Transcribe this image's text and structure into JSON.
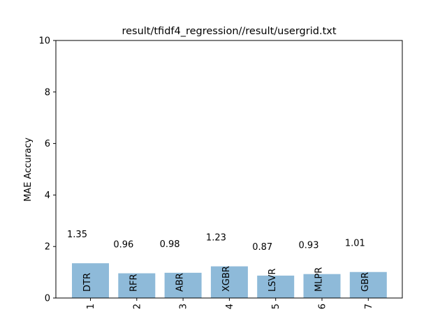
{
  "chart_data": {
    "type": "bar",
    "title": "result/tfidf4_regression//result/usergrid.txt",
    "ylabel": "MAE Accuracy",
    "xlabel": "",
    "ylim": [
      0,
      10
    ],
    "yticks": [
      "0",
      "2",
      "4",
      "6",
      "8",
      "10"
    ],
    "categories": [
      "1",
      "2",
      "3",
      "4",
      "5",
      "6",
      "7"
    ],
    "bar_labels": [
      "DTR",
      "RFR",
      "ABR",
      "XGBR",
      "LSVR",
      "MLPR",
      "GBR"
    ],
    "values": [
      1.35,
      0.96,
      0.98,
      1.23,
      0.87,
      0.93,
      1.01
    ],
    "value_labels": [
      "1.35",
      "0.96",
      "0.98",
      "1.23",
      "0.87",
      "0.93",
      "1.01"
    ],
    "bar_color": "#8ebad9",
    "grid": false,
    "legend": "none"
  }
}
